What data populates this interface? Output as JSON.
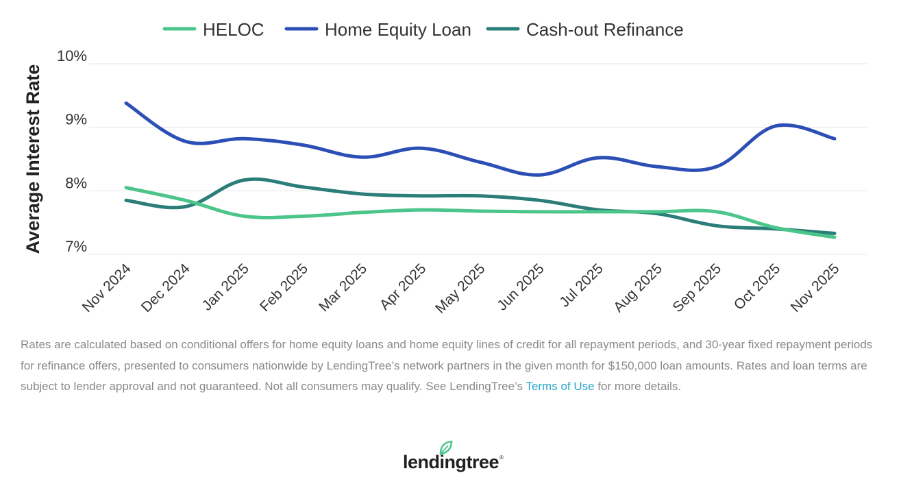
{
  "chart_data": {
    "type": "line",
    "ylabel": "Average Interest Rate",
    "xlabel": "",
    "ylim": [
      7,
      10
    ],
    "yticks": [
      7,
      8,
      9,
      10
    ],
    "ytick_labels": [
      "7%",
      "8%",
      "9%",
      "10%"
    ],
    "grid": "horizontal",
    "legend_position": "top-center",
    "categories": [
      "Nov 2024",
      "Dec 2024",
      "Jan 2025",
      "Feb 2025",
      "Mar 2025",
      "Apr 2025",
      "May 2025",
      "Jun 2025",
      "Jul 2025",
      "Aug 2025",
      "Sep 2025",
      "Oct 2025",
      "Nov 2025"
    ],
    "series": [
      {
        "name": "HELOC",
        "color": "#4cc58a",
        "values": [
          8.05,
          7.85,
          7.6,
          7.6,
          7.66,
          7.7,
          7.68,
          7.67,
          7.67,
          7.67,
          7.67,
          7.42,
          7.27
        ]
      },
      {
        "name": "Home Equity Loan",
        "color": "#2c4fb5",
        "values": [
          9.38,
          8.78,
          8.82,
          8.72,
          8.53,
          8.67,
          8.45,
          8.25,
          8.52,
          8.38,
          8.38,
          9.02,
          8.82
        ]
      },
      {
        "name": "Cash-out Refinance",
        "color": "#2a7d78",
        "values": [
          7.85,
          7.75,
          8.17,
          8.06,
          7.95,
          7.92,
          7.92,
          7.85,
          7.7,
          7.64,
          7.45,
          7.4,
          7.33
        ]
      }
    ]
  },
  "footnote": {
    "text_before_link": "Rates are calculated based on conditional offers for home equity loans and home equity lines of credit for all repayment periods, and 30-year fixed repayment periods for refinance offers, presented to consumers nationwide by LendingTree’s network partners in the given month for $150,000 loan amounts. Rates and loan terms are subject to lender approval and not guaranteed. Not all consumers may qualify. See LendingTree’s ",
    "link_text": "Terms of Use",
    "text_after_link": " for more details."
  },
  "logo": {
    "text": "lendingtree",
    "tm": "®",
    "leaf_color": "#4cc58a"
  }
}
